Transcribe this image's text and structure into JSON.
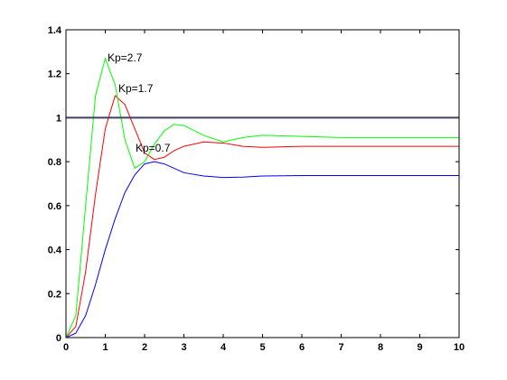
{
  "chart_data": {
    "type": "line",
    "x": [
      0,
      0.25,
      0.5,
      0.75,
      1,
      1.25,
      1.5,
      1.75,
      2,
      2.25,
      2.5,
      2.75,
      3,
      3.5,
      4,
      4.5,
      5,
      6,
      7,
      8,
      9,
      10
    ],
    "series": [
      {
        "color": "#0000ff",
        "values": [
          0,
          0.02,
          0.1,
          0.24,
          0.4,
          0.54,
          0.66,
          0.74,
          0.79,
          0.8,
          0.79,
          0.77,
          0.75,
          0.735,
          0.728,
          0.73,
          0.735,
          0.737,
          0.737,
          0.737,
          0.737,
          0.737
        ]
      },
      {
        "color": "#ff0000",
        "values": [
          0,
          0.05,
          0.3,
          0.65,
          0.95,
          1.1,
          1.06,
          0.95,
          0.84,
          0.81,
          0.82,
          0.85,
          0.87,
          0.89,
          0.885,
          0.87,
          0.865,
          0.87,
          0.87,
          0.87,
          0.87,
          0.87
        ]
      },
      {
        "color": "#00ff00",
        "values": [
          0,
          0.1,
          0.6,
          1.1,
          1.27,
          1.15,
          0.9,
          0.77,
          0.8,
          0.88,
          0.94,
          0.97,
          0.965,
          0.92,
          0.89,
          0.91,
          0.92,
          0.915,
          0.91,
          0.91,
          0.91,
          0.91
        ]
      },
      {
        "color": "#404060",
        "values": [
          1,
          1,
          1,
          1,
          1,
          1,
          1,
          1,
          1,
          1,
          1,
          1,
          1,
          1,
          1,
          1,
          1,
          1,
          1,
          1,
          1,
          1
        ]
      }
    ],
    "annotations": [
      "Kp=2.7",
      "Kp=1.7",
      "Kp=0.7"
    ],
    "xlim": [
      0,
      10
    ],
    "ylim": [
      0,
      1.4
    ],
    "xticks": [
      0,
      1,
      2,
      3,
      4,
      5,
      6,
      7,
      8,
      9,
      10
    ],
    "yticks": [
      0,
      0.2,
      0.4,
      0.6,
      0.8,
      1,
      1.2,
      1.4
    ]
  }
}
